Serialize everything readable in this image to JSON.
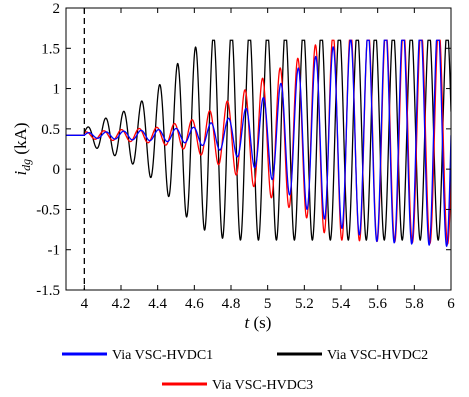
{
  "chart_data": {
    "type": "line",
    "title": "",
    "xlabel": {
      "main": "t",
      "unit": " (s)"
    },
    "ylabel": {
      "main": "i",
      "sub": "dg",
      "unit": " (kA)"
    },
    "xlim": [
      3.9,
      6.0
    ],
    "ylim": [
      -1.5,
      2.0
    ],
    "xticks": [
      4,
      4.2,
      4.4,
      4.6,
      4.8,
      5,
      5.2,
      5.4,
      5.6,
      5.8,
      6
    ],
    "xtick_labels": [
      "4",
      "4.2",
      "4.4",
      "4.6",
      "4.8",
      "5",
      "5.2",
      "5.4",
      "5.6",
      "5.8",
      "6"
    ],
    "yticks": [
      -1.5,
      -1,
      -0.5,
      0,
      0.5,
      1,
      1.5,
      2
    ],
    "ytick_labels": [
      "-1.5",
      "-1",
      "-0.5",
      "0",
      "0.5",
      "1",
      "1.5",
      "2"
    ],
    "grid": false,
    "event_marker_x": 4.0,
    "legend_position": "below",
    "series": [
      {
        "name": "Via VSC-HVDC1",
        "color": "#0000ff",
        "pre_value": 0.42,
        "baseline": 0.42,
        "freq_hz": 10.5,
        "phase": 0.0,
        "amplitude_points": [
          [
            4.0,
            0.03
          ],
          [
            4.2,
            0.05
          ],
          [
            4.4,
            0.07
          ],
          [
            4.6,
            0.1
          ],
          [
            4.8,
            0.22
          ],
          [
            5.0,
            0.5
          ],
          [
            5.1,
            0.7
          ],
          [
            5.2,
            0.9
          ],
          [
            5.4,
            1.15
          ],
          [
            5.6,
            1.32
          ],
          [
            6.0,
            1.38
          ]
        ],
        "clip": [
          -1.15,
          1.6
        ]
      },
      {
        "name": "Via VSC-HVDC2",
        "color": "#000000",
        "pre_value": 0.42,
        "baseline": 0.42,
        "freq_hz": 10.2,
        "phase": 0.4,
        "amplitude_points": [
          [
            4.0,
            0.08
          ],
          [
            4.1,
            0.2
          ],
          [
            4.2,
            0.28
          ],
          [
            4.3,
            0.4
          ],
          [
            4.4,
            0.6
          ],
          [
            4.55,
            1.0
          ],
          [
            4.7,
            1.25
          ],
          [
            4.8,
            1.3
          ],
          [
            5.0,
            1.3
          ],
          [
            6.0,
            1.3
          ]
        ],
        "clip": [
          -1.15,
          1.6
        ]
      },
      {
        "name": "Via VSC-HVDC3",
        "color": "#ff0000",
        "pre_value": 0.42,
        "baseline": 0.42,
        "freq_hz": 10.4,
        "phase": 0.9,
        "amplitude_points": [
          [
            4.0,
            0.04
          ],
          [
            4.2,
            0.07
          ],
          [
            4.4,
            0.1
          ],
          [
            4.6,
            0.2
          ],
          [
            4.8,
            0.45
          ],
          [
            5.0,
            0.75
          ],
          [
            5.2,
            1.0
          ],
          [
            5.3,
            1.2
          ],
          [
            5.4,
            1.3
          ],
          [
            6.0,
            1.35
          ]
        ],
        "clip": [
          -1.15,
          1.6
        ]
      }
    ]
  }
}
